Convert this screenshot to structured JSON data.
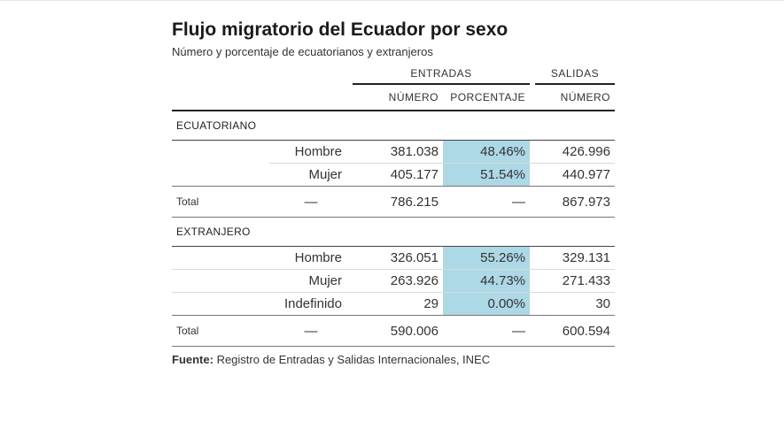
{
  "title": "Flujo migratorio del Ecuador por sexo",
  "subtitle": "Número y porcentaje de ecuatorianos y extranjeros",
  "headers": {
    "entradas": "ENTRADAS",
    "salidas": "SALIDAS",
    "numero": "NÚMERO",
    "porcentaje": "PORCENTAJE",
    "numero_salidas": "NÚMERO"
  },
  "ecuatoriano": {
    "label": "ECUATORIANO",
    "rows": [
      {
        "sexo": "Hombre",
        "entradas_numero": "381.038",
        "entradas_porcentaje": "48.46%",
        "salidas_numero": "426.996"
      },
      {
        "sexo": "Mujer",
        "entradas_numero": "405.177",
        "entradas_porcentaje": "51.54%",
        "salidas_numero": "440.977"
      }
    ],
    "total": {
      "label": "Total",
      "sexo": "—",
      "entradas_numero": "786.215",
      "entradas_porcentaje": "—",
      "salidas_numero": "867.973"
    }
  },
  "extranjero": {
    "label": "EXTRANJERO",
    "rows": [
      {
        "sexo": "Hombre",
        "entradas_numero": "326.051",
        "entradas_porcentaje": "55.26%",
        "salidas_numero": "329.131"
      },
      {
        "sexo": "Mujer",
        "entradas_numero": "263.926",
        "entradas_porcentaje": "44.73%",
        "salidas_numero": "271.433"
      },
      {
        "sexo": "Indefinido",
        "entradas_numero": "29",
        "entradas_porcentaje": "0.00%",
        "salidas_numero": "30"
      }
    ],
    "total": {
      "label": "Total",
      "sexo": "—",
      "entradas_numero": "590.006",
      "entradas_porcentaje": "—",
      "salidas_numero": "600.594"
    }
  },
  "source": {
    "label": "Fuente:",
    "text": " Registro de Entradas y Salidas Internacionales, INEC"
  },
  "colors": {
    "highlight": "#add8e6"
  }
}
